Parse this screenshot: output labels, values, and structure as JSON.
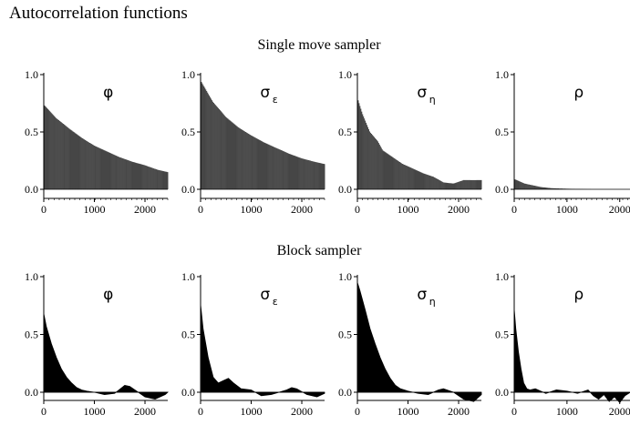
{
  "title": "Autocorrelation functions",
  "sections": [
    {
      "label": "Single move sampler"
    },
    {
      "label": "Block sampler"
    }
  ],
  "chart_data": [
    {
      "type": "bar",
      "section": "Single move sampler",
      "panel_label": "φ",
      "panel_sub": "",
      "x_ticks": [
        "0",
        "1000",
        "2000"
      ],
      "y_ticks": [
        "0.0",
        "0.5",
        "1.0"
      ],
      "xlim": [
        0,
        2450
      ],
      "ylim": [
        -0.05,
        1.0
      ],
      "x": [
        0,
        250,
        500,
        750,
        1000,
        1250,
        1500,
        1750,
        2000,
        2250,
        2450
      ],
      "y": [
        0.74,
        0.62,
        0.53,
        0.45,
        0.38,
        0.33,
        0.28,
        0.24,
        0.21,
        0.17,
        0.15
      ]
    },
    {
      "type": "bar",
      "section": "Single move sampler",
      "panel_label": "σ",
      "panel_sub": "ε",
      "x_ticks": [
        "0",
        "1000",
        "2000"
      ],
      "y_ticks": [
        "0.0",
        "0.5",
        "1.0"
      ],
      "xlim": [
        0,
        2450
      ],
      "ylim": [
        -0.05,
        1.0
      ],
      "x": [
        0,
        250,
        500,
        750,
        1000,
        1250,
        1500,
        1750,
        2000,
        2250,
        2450
      ],
      "y": [
        0.95,
        0.76,
        0.63,
        0.54,
        0.47,
        0.41,
        0.36,
        0.31,
        0.27,
        0.24,
        0.22
      ]
    },
    {
      "type": "bar",
      "section": "Single move sampler",
      "panel_label": "σ",
      "panel_sub": "η",
      "x_ticks": [
        "0",
        "1000",
        "2000"
      ],
      "y_ticks": [
        "0.0",
        "0.5",
        "1.0"
      ],
      "xlim": [
        0,
        2450
      ],
      "ylim": [
        -0.05,
        1.0
      ],
      "x": [
        0,
        100,
        250,
        400,
        500,
        700,
        900,
        1100,
        1300,
        1500,
        1700,
        1900,
        2100,
        2300,
        2450
      ],
      "y": [
        0.8,
        0.66,
        0.5,
        0.42,
        0.34,
        0.28,
        0.22,
        0.18,
        0.14,
        0.11,
        0.06,
        0.05,
        0.08,
        0.08,
        0.08
      ]
    },
    {
      "type": "bar",
      "section": "Single move sampler",
      "panel_label": "ρ",
      "panel_sub": "",
      "x_ticks": [
        "0",
        "1000",
        "2000"
      ],
      "y_ticks": [
        "0.0",
        "0.5",
        "1.0"
      ],
      "xlim": [
        0,
        2350
      ],
      "ylim": [
        -0.05,
        1.0
      ],
      "x": [
        0,
        100,
        200,
        300,
        500,
        700,
        1000,
        1500,
        2000,
        2350
      ],
      "y": [
        0.09,
        0.07,
        0.05,
        0.04,
        0.02,
        0.01,
        0.005,
        0.0,
        0.0,
        0.0
      ]
    },
    {
      "type": "area",
      "section": "Block sampler",
      "panel_label": "φ",
      "panel_sub": "",
      "x_ticks": [
        "0",
        "1000",
        "2000"
      ],
      "y_ticks": [
        "0.0",
        "0.5",
        "1.0"
      ],
      "xlim": [
        0,
        2450
      ],
      "ylim": [
        -0.1,
        1.0
      ],
      "x": [
        0,
        50,
        150,
        250,
        350,
        450,
        550,
        650,
        750,
        850,
        1000,
        1200,
        1400,
        1600,
        1700,
        1800,
        2000,
        2200,
        2400,
        2450
      ],
      "y": [
        0.68,
        0.57,
        0.42,
        0.3,
        0.2,
        0.13,
        0.08,
        0.04,
        0.02,
        0.01,
        0.0,
        -0.02,
        -0.01,
        0.06,
        0.05,
        0.02,
        -0.04,
        -0.06,
        -0.02,
        0.0
      ]
    },
    {
      "type": "area",
      "section": "Block sampler",
      "panel_label": "σ",
      "panel_sub": "ε",
      "x_ticks": [
        "0",
        "1000",
        "2000"
      ],
      "y_ticks": [
        "0.0",
        "0.5",
        "1.0"
      ],
      "xlim": [
        0,
        2450
      ],
      "ylim": [
        -0.1,
        1.0
      ],
      "x": [
        0,
        50,
        150,
        250,
        350,
        450,
        550,
        650,
        800,
        1000,
        1200,
        1400,
        1550,
        1700,
        1800,
        1900,
        2100,
        2300,
        2450
      ],
      "y": [
        0.76,
        0.55,
        0.3,
        0.13,
        0.08,
        0.1,
        0.12,
        0.08,
        0.03,
        0.02,
        -0.03,
        -0.02,
        0.0,
        0.02,
        0.04,
        0.03,
        -0.02,
        -0.04,
        -0.01
      ]
    },
    {
      "type": "area",
      "section": "Block sampler",
      "panel_label": "σ",
      "panel_sub": "η",
      "x_ticks": [
        "0",
        "1000",
        "2000"
      ],
      "y_ticks": [
        "0.0",
        "0.5",
        "1.0"
      ],
      "xlim": [
        0,
        2450
      ],
      "ylim": [
        -0.1,
        1.0
      ],
      "x": [
        0,
        50,
        150,
        250,
        350,
        450,
        550,
        650,
        750,
        850,
        1000,
        1200,
        1400,
        1600,
        1700,
        1900,
        2100,
        2300,
        2450
      ],
      "y": [
        0.95,
        0.88,
        0.72,
        0.55,
        0.42,
        0.3,
        0.2,
        0.12,
        0.06,
        0.03,
        0.01,
        -0.01,
        -0.02,
        0.02,
        0.03,
        0.0,
        -0.06,
        -0.08,
        -0.02
      ]
    },
    {
      "type": "area",
      "section": "Block sampler",
      "panel_label": "ρ",
      "panel_sub": "",
      "x_ticks": [
        "0",
        "1000",
        "2000"
      ],
      "y_ticks": [
        "0.0",
        "0.5",
        "1.0"
      ],
      "xlim": [
        0,
        2350
      ],
      "ylim": [
        -0.1,
        1.0
      ],
      "x": [
        0,
        30,
        80,
        130,
        180,
        240,
        300,
        400,
        500,
        600,
        800,
        1000,
        1200,
        1400,
        1500,
        1600,
        1700,
        1800,
        1900,
        2000,
        2100,
        2200,
        2300,
        2350
      ],
      "y": [
        0.72,
        0.55,
        0.35,
        0.2,
        0.08,
        0.03,
        0.02,
        0.03,
        0.01,
        -0.01,
        0.02,
        0.01,
        -0.01,
        0.02,
        -0.03,
        -0.06,
        -0.02,
        -0.08,
        -0.04,
        -0.09,
        -0.03,
        0.0,
        -0.04,
        -0.03
      ]
    }
  ]
}
